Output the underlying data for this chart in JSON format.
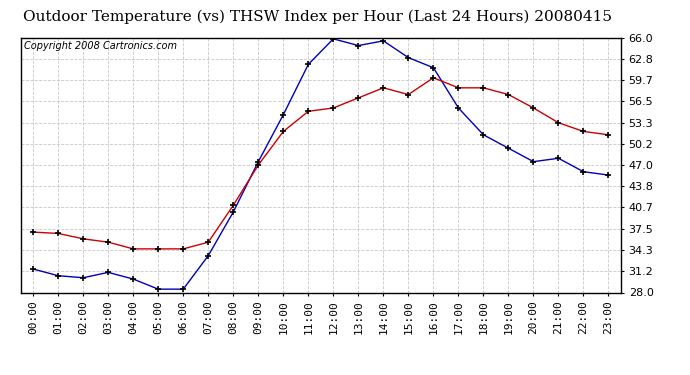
{
  "title": "Outdoor Temperature (vs) THSW Index per Hour (Last 24 Hours) 20080415",
  "copyright": "Copyright 2008 Cartronics.com",
  "hours": [
    "00:00",
    "01:00",
    "02:00",
    "03:00",
    "04:00",
    "05:00",
    "06:00",
    "07:00",
    "08:00",
    "09:00",
    "10:00",
    "11:00",
    "12:00",
    "13:00",
    "14:00",
    "15:00",
    "16:00",
    "17:00",
    "18:00",
    "19:00",
    "20:00",
    "21:00",
    "22:00",
    "23:00"
  ],
  "blue_data": [
    31.5,
    30.5,
    30.2,
    31.0,
    30.0,
    28.5,
    28.5,
    33.5,
    40.0,
    47.5,
    54.5,
    62.0,
    65.8,
    64.8,
    65.5,
    63.0,
    61.5,
    55.5,
    51.5,
    49.5,
    47.5,
    48.0,
    46.0,
    45.5
  ],
  "red_data": [
    37.0,
    36.8,
    36.0,
    35.5,
    34.5,
    34.5,
    34.5,
    35.5,
    41.0,
    47.0,
    52.0,
    55.0,
    55.5,
    57.0,
    58.5,
    57.5,
    60.0,
    58.5,
    58.5,
    57.5,
    55.5,
    53.3,
    52.0,
    51.5
  ],
  "ylim_min": 28.0,
  "ylim_max": 66.0,
  "yticks": [
    28.0,
    31.2,
    34.3,
    37.5,
    40.7,
    43.8,
    47.0,
    50.2,
    53.3,
    56.5,
    59.7,
    62.8,
    66.0
  ],
  "blue_color": "#0000bb",
  "red_color": "#cc0000",
  "bg_color": "#ffffff",
  "plot_bg_color": "#ffffff",
  "grid_color": "#c8c8c8",
  "title_fontsize": 11,
  "copyright_fontsize": 7,
  "tick_fontsize": 8,
  "marker_color": "#000000"
}
